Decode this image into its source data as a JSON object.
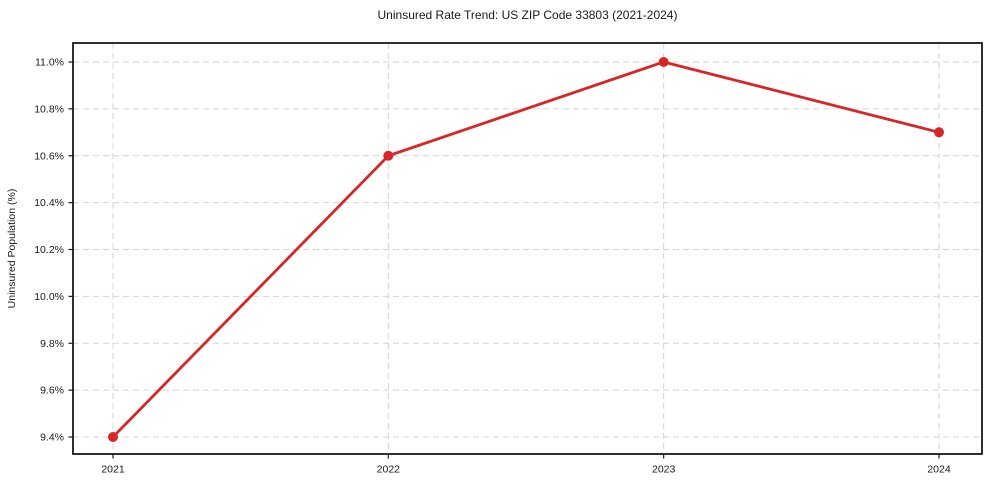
{
  "figure": {
    "title": "Uninsured Rate Trend: US ZIP Code 33803 (2021-2024)",
    "ylabel": "Uninsured Population (%)"
  },
  "chart_data": {
    "type": "line",
    "title": "Uninsured Rate Trend: US ZIP Code 33803 (2021-2024)",
    "xlabel": "",
    "ylabel": "Uninsured Population (%)",
    "categories": [
      "2021",
      "2022",
      "2023",
      "2024"
    ],
    "series": [
      {
        "name": "uninsured-rate",
        "values": [
          9.4,
          10.6,
          11.0,
          10.7
        ],
        "color": "#d62728"
      }
    ],
    "yticks": [
      9.4,
      9.6,
      9.8,
      10.0,
      10.2,
      10.4,
      10.6,
      10.8,
      11.0
    ],
    "ytick_labels": [
      "9.4%",
      "9.6%",
      "9.8%",
      "10.0%",
      "10.2%",
      "10.4%",
      "10.6%",
      "10.8%",
      "11.0%"
    ],
    "ylim": [
      9.3275,
      11.081
    ],
    "grid": true,
    "grid_style": "dashed",
    "legend": "none",
    "colors": {
      "line": "#d62728",
      "marker": "#d62728",
      "grid": "#cccccc",
      "spine": "#1a1a1a",
      "tick": "#1a1a1a",
      "text": "#1a1a1a",
      "background": "#ffffff"
    },
    "marker_radius": 5,
    "line_width": 2.8
  }
}
